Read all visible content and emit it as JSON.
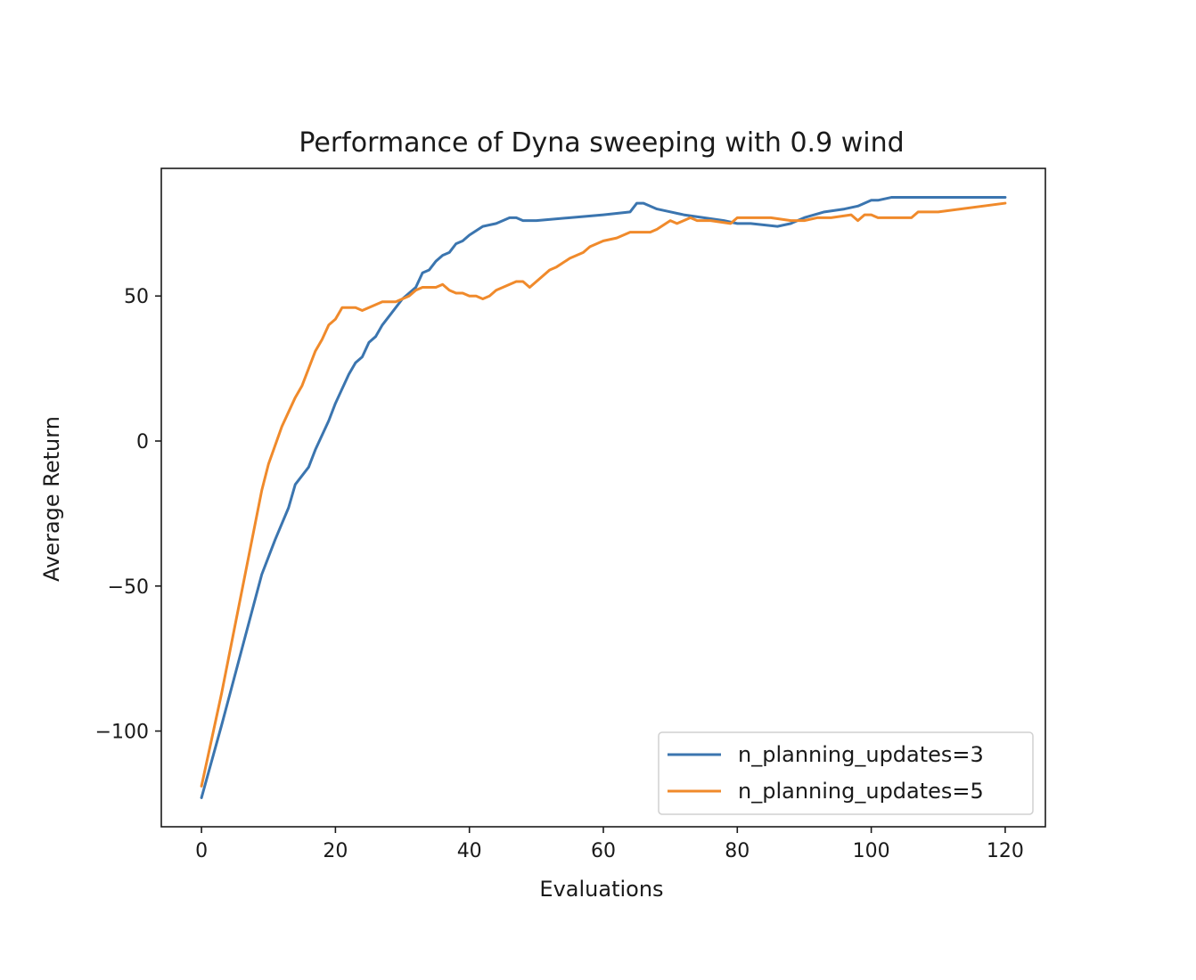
{
  "chart_data": {
    "type": "line",
    "title": "Performance of Dyna sweeping  with 0.9 wind",
    "xlabel": "Evaluations",
    "ylabel": "Average Return",
    "xlim": [
      -6,
      126
    ],
    "ylim": [
      -133,
      94
    ],
    "xticks": [
      0,
      20,
      40,
      60,
      80,
      100,
      120
    ],
    "yticks": [
      -100,
      -50,
      0,
      50
    ],
    "xtick_labels": [
      "0",
      "20",
      "40",
      "60",
      "80",
      "100",
      "120"
    ],
    "ytick_labels": [
      "−100",
      "−50",
      "0",
      "50"
    ],
    "grid": false,
    "legend_position": "lower-right",
    "series": [
      {
        "name": "n_planning_updates=3",
        "color": "#3b75af",
        "x": [
          0,
          3,
          6,
          9,
          11,
          13,
          14,
          16,
          17,
          19,
          20,
          22,
          23,
          24,
          25,
          26,
          27,
          28,
          30,
          32,
          33,
          34,
          35,
          36,
          37,
          38,
          39,
          40,
          42,
          44,
          46,
          47,
          48,
          49,
          50,
          55,
          60,
          64,
          65,
          66,
          68,
          70,
          72,
          75,
          78,
          80,
          82,
          86,
          88,
          90,
          93,
          96,
          98,
          100,
          101,
          103,
          106,
          110,
          115,
          120
        ],
        "y": [
          -123,
          -98,
          -72,
          -46,
          -34,
          -23,
          -15,
          -9,
          -3,
          7,
          13,
          23,
          27,
          29,
          34,
          36,
          40,
          43,
          49,
          53,
          58,
          59,
          62,
          64,
          65,
          68,
          69,
          71,
          74,
          75,
          77,
          77,
          76,
          76,
          76,
          77,
          78,
          79,
          82,
          82,
          80,
          79,
          78,
          77,
          76,
          75,
          75,
          74,
          75,
          77,
          79,
          80,
          81,
          83,
          83,
          84,
          84,
          84,
          84,
          84
        ]
      },
      {
        "name": "n_planning_updates=5",
        "color": "#f08a2b",
        "x": [
          0,
          3,
          6,
          9,
          10,
          12,
          14,
          15,
          16,
          17,
          18,
          19,
          20,
          21,
          22,
          23,
          24,
          25,
          26,
          27,
          28,
          29,
          30,
          31,
          32,
          33,
          34,
          35,
          36,
          37,
          38,
          39,
          40,
          41,
          42,
          43,
          44,
          45,
          46,
          47,
          48,
          49,
          50,
          51,
          52,
          53,
          55,
          56,
          57,
          58,
          60,
          62,
          64,
          67,
          68,
          70,
          71,
          72,
          73,
          74,
          76,
          79,
          80,
          85,
          88,
          90,
          92,
          94,
          97,
          98,
          99,
          100,
          101,
          104,
          106,
          107,
          110,
          120
        ],
        "y": [
          -119,
          -87,
          -52,
          -17,
          -8,
          5,
          15,
          19,
          25,
          31,
          35,
          40,
          42,
          46,
          46,
          46,
          45,
          46,
          47,
          48,
          48,
          48,
          49,
          50,
          52,
          53,
          53,
          53,
          54,
          52,
          51,
          51,
          50,
          50,
          49,
          50,
          52,
          53,
          54,
          55,
          55,
          53,
          55,
          57,
          59,
          60,
          63,
          64,
          65,
          67,
          69,
          70,
          72,
          72,
          73,
          76,
          75,
          76,
          77,
          76,
          76,
          75,
          77,
          77,
          76,
          76,
          77,
          77,
          78,
          76,
          78,
          78,
          77,
          77,
          77,
          79,
          79,
          82
        ]
      }
    ]
  }
}
